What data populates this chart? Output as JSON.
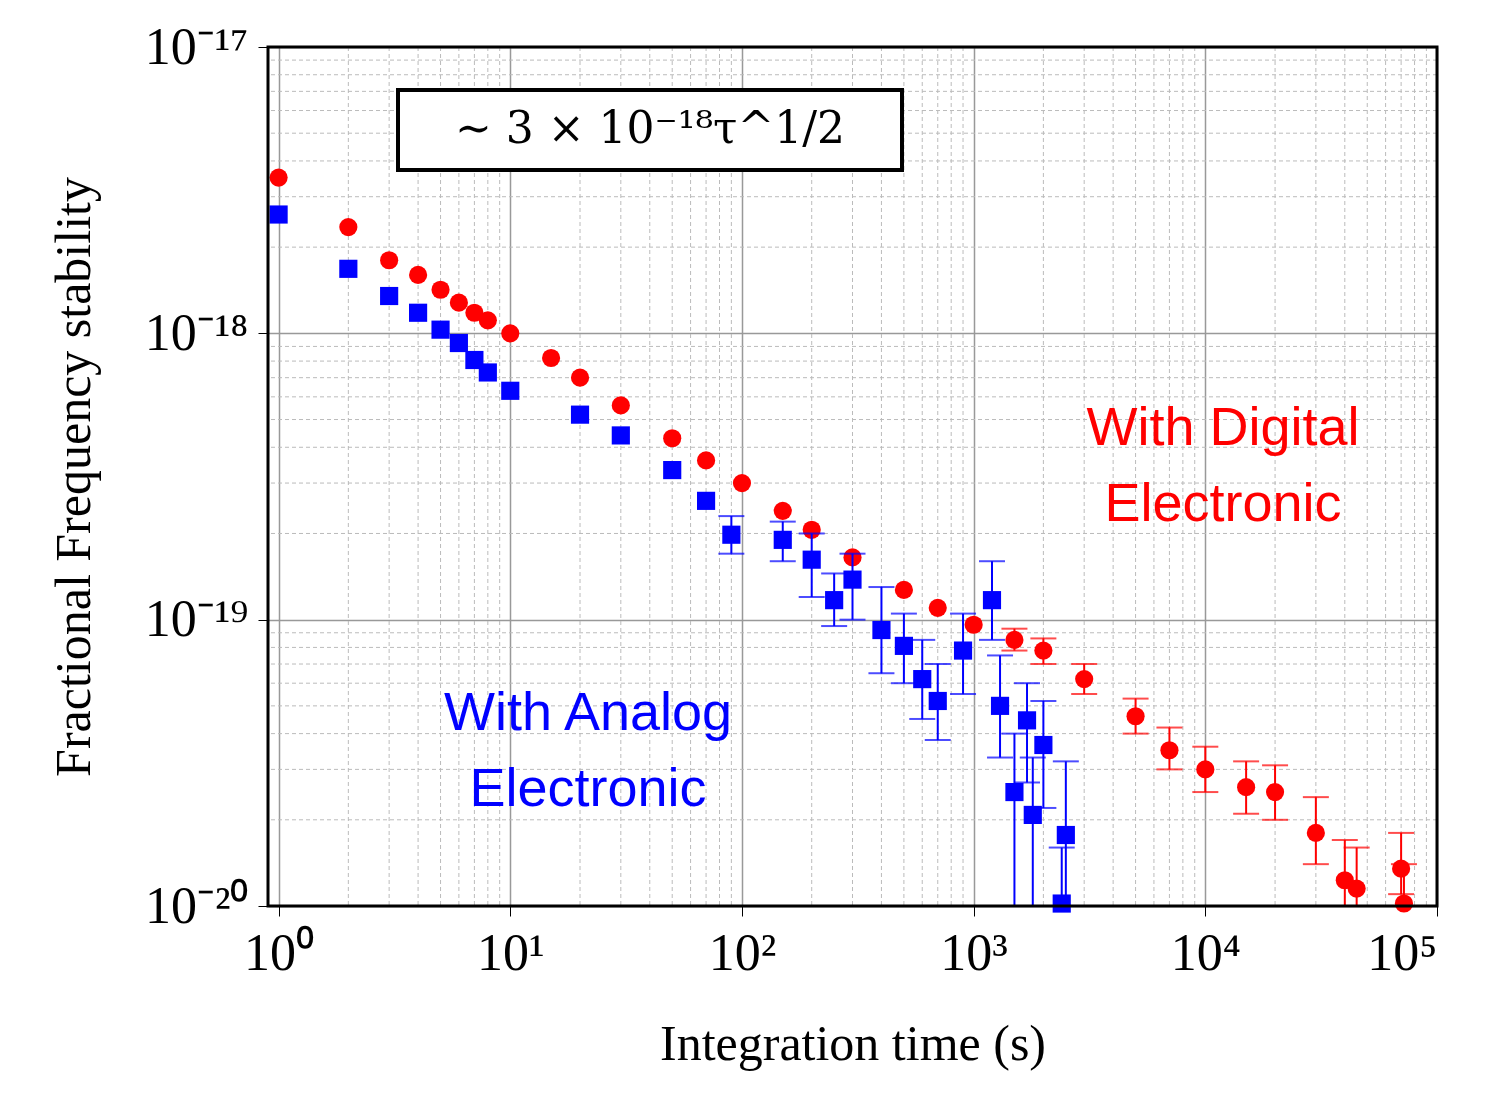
{
  "chart_data": {
    "type": "scatter",
    "xlabel": "Integration time (s)",
    "ylabel": "Fractional Frequency stability",
    "log": "xy",
    "grid": true,
    "xlim": [
      0.9,
      100000
    ],
    "ylim": [
      1e-20,
      1e-17
    ],
    "xticks": [
      {
        "value": 1,
        "label": "10⁰"
      },
      {
        "value": 10,
        "label": "10¹"
      },
      {
        "value": 100,
        "label": "10²"
      },
      {
        "value": 1000,
        "label": "10³"
      },
      {
        "value": 10000,
        "label": "10⁴"
      },
      {
        "value": 100000,
        "label": "10⁵"
      }
    ],
    "yticks": [
      {
        "value": 1e-17,
        "label": "10⁻¹⁷"
      },
      {
        "value": 1e-18,
        "label": "10⁻¹⁸"
      },
      {
        "value": 1e-19,
        "label": "10⁻¹⁹"
      },
      {
        "value": 1e-20,
        "label": "10⁻²⁰"
      }
    ],
    "annotations": [
      "∼ 3 × 10⁻¹⁸τ^1/2"
    ],
    "series": [
      {
        "name": "With Digital Electronic",
        "color": "#ff0000",
        "marker": "circle",
        "x": [
          1,
          2,
          3,
          4,
          5,
          6,
          7,
          8,
          10,
          15,
          20,
          30,
          50,
          70,
          100,
          150,
          200,
          300,
          500,
          700,
          1000,
          1500,
          2000,
          3000,
          5000,
          7000,
          10000,
          15000,
          20000,
          30000,
          40000,
          45000,
          70000,
          72000
        ],
        "values": [
          3.5e-18,
          2.35e-18,
          1.8e-18,
          1.6e-18,
          1.42e-18,
          1.28e-18,
          1.18e-18,
          1.11e-18,
          1e-18,
          8.2e-19,
          7e-19,
          5.6e-19,
          4.3e-19,
          3.6e-19,
          3e-19,
          2.4e-19,
          2.06e-19,
          1.65e-19,
          1.27e-19,
          1.1e-19,
          9.6e-20,
          8.5e-20,
          7.8e-20,
          6.2e-20,
          4.6e-20,
          3.5e-20,
          3e-20,
          2.6e-20,
          2.5e-20,
          1.8e-20,
          1.23e-20,
          1.15e-20,
          1.35e-20,
          1.02e-20
        ],
        "errors": [
          null,
          null,
          null,
          null,
          null,
          null,
          null,
          null,
          null,
          null,
          null,
          null,
          null,
          null,
          null,
          null,
          null,
          null,
          null,
          null,
          null,
          [
            7.8e-20,
            9.3e-20
          ],
          [
            7e-20,
            8.6e-20
          ],
          [
            5.5e-20,
            7e-20
          ],
          [
            4e-20,
            5.3e-20
          ],
          [
            3e-20,
            4.2e-20
          ],
          [
            2.5e-20,
            3.6e-20
          ],
          [
            2.1e-20,
            3.2e-20
          ],
          [
            2e-20,
            3.1e-20
          ],
          [
            1.4e-20,
            2.4e-20
          ],
          [
            1e-20,
            1.7e-20
          ],
          [
            1e-20,
            1.6e-20
          ],
          [
            1.1e-20,
            1.8e-20
          ],
          [
            1e-20,
            1.4e-20
          ]
        ]
      },
      {
        "name": "With Analog Electronic",
        "color": "#0000ff",
        "marker": "square",
        "x": [
          1,
          2,
          3,
          4,
          5,
          6,
          7,
          8,
          10,
          20,
          30,
          50,
          70,
          90,
          150,
          200,
          250,
          300,
          400,
          500,
          600,
          700,
          900,
          1200,
          1300,
          1500,
          1700,
          1800,
          2000,
          2400,
          2500
        ],
        "values": [
          2.6e-18,
          1.68e-18,
          1.35e-18,
          1.18e-18,
          1.03e-18,
          9.25e-19,
          8.07e-19,
          7.3e-19,
          6.3e-19,
          5.2e-19,
          4.4e-19,
          3.33e-19,
          2.6e-19,
          1.98e-19,
          1.9e-19,
          1.62e-19,
          1.17e-19,
          1.38e-19,
          9.2e-20,
          8.1e-20,
          6.2e-20,
          5.2e-20,
          7.8e-20,
          1.17e-19,
          5e-20,
          2.5e-20,
          4.45e-20,
          2.08e-20,
          3.65e-20,
          1.02e-20,
          1.77e-20
        ],
        "errors": [
          null,
          null,
          null,
          null,
          null,
          null,
          null,
          null,
          null,
          null,
          null,
          null,
          null,
          [
            1.7e-19,
            2.3e-19
          ],
          [
            1.6e-19,
            2.2e-19
          ],
          [
            1.2e-19,
            2e-19
          ],
          [
            9.5e-20,
            1.45e-19
          ],
          [
            1e-19,
            1.7e-19
          ],
          [
            6.5e-20,
            1.3e-19
          ],
          [
            6e-20,
            1.05e-19
          ],
          [
            4.5e-20,
            8.5e-20
          ],
          [
            3.8e-20,
            7e-20
          ],
          [
            5.5e-20,
            1.05e-19
          ],
          [
            8.5e-20,
            1.6e-19
          ],
          [
            3.3e-20,
            7.5e-20
          ],
          [
            1e-20,
            4e-20
          ],
          [
            2.7e-20,
            6e-20
          ],
          [
            1e-20,
            3.3e-20
          ],
          [
            2.2e-20,
            5.2e-20
          ],
          [
            1e-20,
            1.6e-20
          ],
          [
            1e-20,
            3.2e-20
          ]
        ]
      }
    ]
  }
}
